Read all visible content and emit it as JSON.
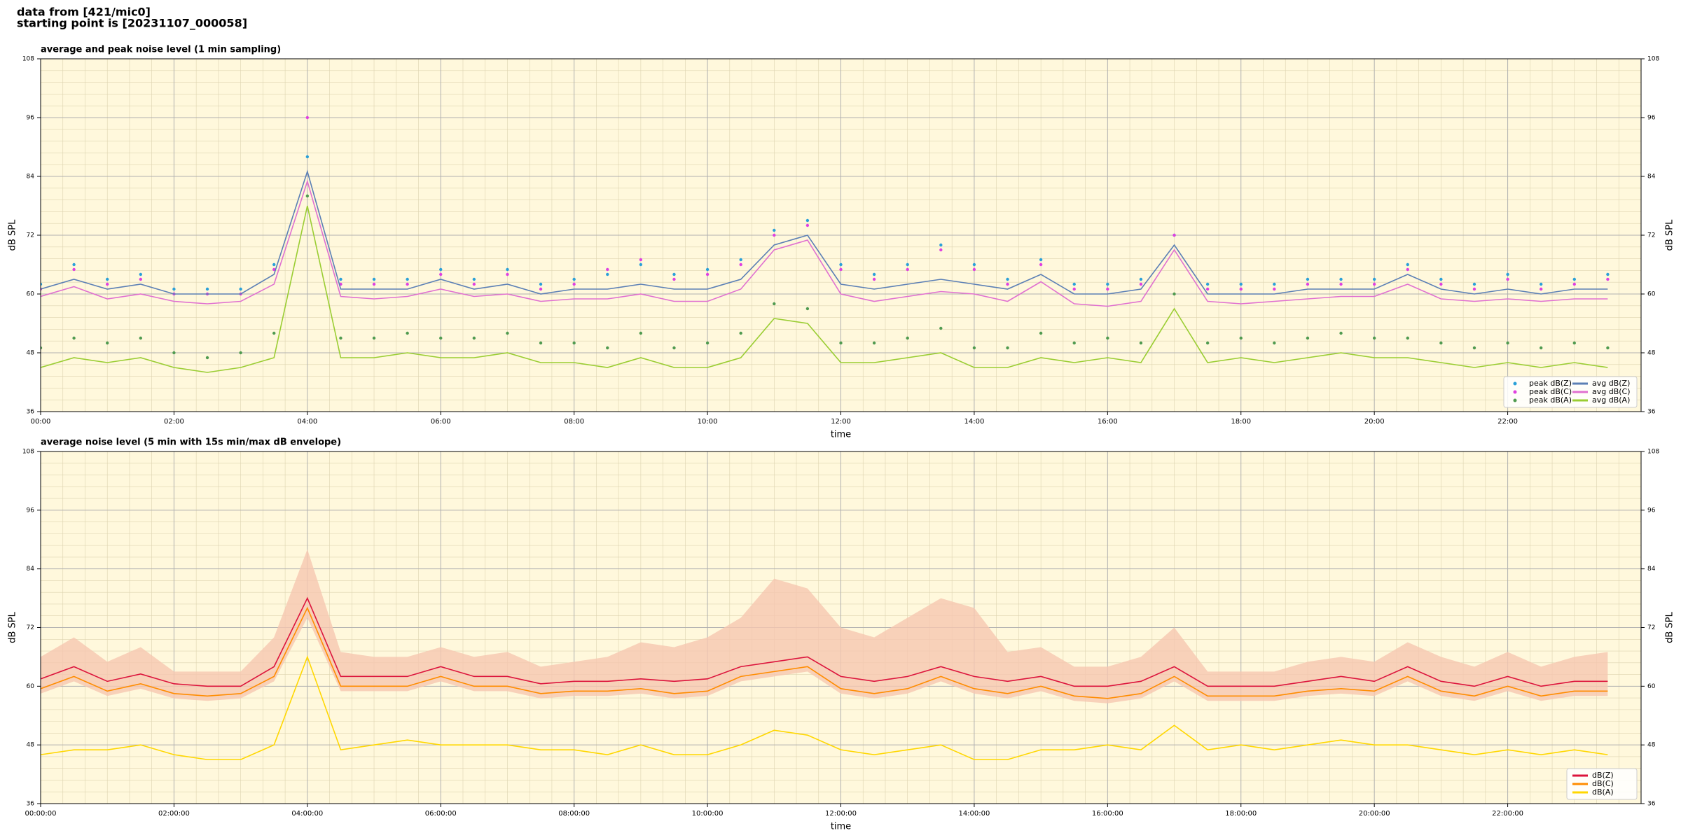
{
  "header": {
    "lines": [
      "data from [421/mic0]",
      "starting point is [20231107_000058]"
    ]
  },
  "chart_data": [
    {
      "type": "line",
      "title": "average and peak noise level (1 min sampling)",
      "xlabel": "time",
      "ylabel": "dB SPL",
      "y2label": "dB SPL",
      "background": "#fff8dc",
      "grid": true,
      "legend": "lower right",
      "legend_columns": 2,
      "xlim": [
        0,
        24
      ],
      "xticks": [
        {
          "value": 0,
          "label": "00:00"
        },
        {
          "value": 2,
          "label": "02:00"
        },
        {
          "value": 4,
          "label": "04:00"
        },
        {
          "value": 6,
          "label": "06:00"
        },
        {
          "value": 8,
          "label": "08:00"
        },
        {
          "value": 10,
          "label": "10:00"
        },
        {
          "value": 12,
          "label": "12:00"
        },
        {
          "value": 14,
          "label": "14:00"
        },
        {
          "value": 16,
          "label": "16:00"
        },
        {
          "value": 18,
          "label": "18:00"
        },
        {
          "value": 20,
          "label": "20:00"
        },
        {
          "value": 22,
          "label": "22:00"
        }
      ],
      "ylim": [
        36,
        108
      ],
      "yticks": [
        36,
        48,
        60,
        72,
        84,
        96,
        108
      ],
      "y2lim": [
        36,
        108
      ],
      "y2ticks": [
        36,
        48,
        60,
        72,
        84,
        96,
        108
      ],
      "x": [
        0,
        0.5,
        1,
        1.5,
        2,
        2.5,
        3,
        3.5,
        4,
        4.5,
        5,
        5.5,
        6,
        6.5,
        7,
        7.5,
        8,
        8.5,
        9,
        9.5,
        10,
        10.5,
        11,
        11.5,
        12,
        12.5,
        13,
        13.5,
        14,
        14.5,
        15,
        15.5,
        16,
        16.5,
        17,
        17.5,
        18,
        18.5,
        19,
        19.5,
        20,
        20.5,
        21,
        21.5,
        22,
        22.5,
        23,
        23.5
      ],
      "series": [
        {
          "name": "peak dB(Z)",
          "kind": "scatter",
          "color": "#2aa0d8",
          "values": [
            62,
            66,
            63,
            64,
            61,
            61,
            61,
            66,
            88,
            63,
            63,
            63,
            65,
            63,
            65,
            62,
            63,
            64,
            66,
            64,
            65,
            67,
            73,
            75,
            66,
            64,
            66,
            70,
            66,
            63,
            67,
            62,
            62,
            63,
            72,
            62,
            62,
            62,
            63,
            63,
            63,
            66,
            63,
            62,
            64,
            62,
            63,
            64
          ]
        },
        {
          "name": "peak dB(C)",
          "kind": "scatter",
          "color": "#e040e0",
          "values": [
            61,
            65,
            62,
            63,
            60,
            60,
            60,
            65,
            96,
            62,
            62,
            62,
            64,
            62,
            64,
            61,
            62,
            65,
            67,
            63,
            64,
            66,
            72,
            74,
            65,
            63,
            65,
            69,
            65,
            62,
            66,
            61,
            61,
            62,
            72,
            61,
            61,
            61,
            62,
            62,
            62,
            65,
            62,
            61,
            63,
            61,
            62,
            63
          ]
        },
        {
          "name": "peak dB(A)",
          "kind": "scatter",
          "color": "#4f9a4f",
          "values": [
            49,
            51,
            50,
            51,
            48,
            47,
            48,
            52,
            80,
            51,
            51,
            52,
            51,
            51,
            52,
            50,
            50,
            49,
            52,
            49,
            50,
            52,
            58,
            57,
            50,
            50,
            51,
            53,
            49,
            49,
            52,
            50,
            51,
            50,
            60,
            50,
            51,
            50,
            51,
            52,
            51,
            51,
            50,
            49,
            50,
            49,
            50,
            49
          ]
        },
        {
          "name": "avg dB(Z)",
          "kind": "line",
          "color": "#5b7fb5",
          "values": [
            61,
            63,
            61,
            62,
            60,
            60,
            60,
            64,
            85,
            61,
            61,
            61,
            63,
            61,
            62,
            60,
            61,
            61,
            62,
            61,
            61,
            63,
            70,
            72,
            62,
            61,
            62,
            63,
            62,
            61,
            64,
            60,
            60,
            61,
            70,
            60,
            60,
            60,
            61,
            61,
            61,
            64,
            61,
            60,
            61,
            60,
            61,
            61
          ]
        },
        {
          "name": "avg dB(C)",
          "kind": "line",
          "color": "#e070d0",
          "values": [
            59.5,
            61.5,
            59,
            60,
            58.5,
            58,
            58.5,
            62,
            83,
            59.5,
            59,
            59.5,
            61,
            59.5,
            60,
            58.5,
            59,
            59,
            60,
            58.5,
            58.5,
            61,
            69,
            71,
            60,
            58.5,
            59.5,
            60.5,
            60,
            58.5,
            62.5,
            58,
            57.5,
            58.5,
            69,
            58.5,
            58,
            58.5,
            59,
            59.5,
            59.5,
            62,
            59,
            58.5,
            59,
            58.5,
            59,
            59
          ]
        },
        {
          "name": "avg dB(A)",
          "kind": "line",
          "color": "#9acd32",
          "values": [
            45,
            47,
            46,
            47,
            45,
            44,
            45,
            47,
            78,
            47,
            47,
            48,
            47,
            47,
            48,
            46,
            46,
            45,
            47,
            45,
            45,
            47,
            55,
            54,
            46,
            46,
            47,
            48,
            45,
            45,
            47,
            46,
            47,
            46,
            57,
            46,
            47,
            46,
            47,
            48,
            47,
            47,
            46,
            45,
            46,
            45,
            46,
            45
          ]
        }
      ]
    },
    {
      "type": "line",
      "title": "average noise level (5 min with 15s min/max dB envelope)",
      "xlabel": "time",
      "ylabel": "dB SPL",
      "y2label": "dB SPL",
      "background": "#fff8dc",
      "grid": true,
      "legend": "lower right",
      "legend_columns": 1,
      "xlim": [
        0,
        24
      ],
      "xticks": [
        {
          "value": 0,
          "label": "00:00:00"
        },
        {
          "value": 2,
          "label": "02:00:00"
        },
        {
          "value": 4,
          "label": "04:00:00"
        },
        {
          "value": 6,
          "label": "06:00:00"
        },
        {
          "value": 8,
          "label": "08:00:00"
        },
        {
          "value": 10,
          "label": "10:00:00"
        },
        {
          "value": 12,
          "label": "12:00:00"
        },
        {
          "value": 14,
          "label": "14:00:00"
        },
        {
          "value": 16,
          "label": "16:00:00"
        },
        {
          "value": 18,
          "label": "18:00:00"
        },
        {
          "value": 20,
          "label": "20:00:00"
        },
        {
          "value": 22,
          "label": "22:00:00"
        }
      ],
      "ylim": [
        36,
        108
      ],
      "yticks": [
        36,
        48,
        60,
        72,
        84,
        96,
        108
      ],
      "y2lim": [
        36,
        108
      ],
      "y2ticks": [
        36,
        48,
        60,
        72,
        84,
        96,
        108
      ],
      "x": [
        0,
        0.5,
        1,
        1.5,
        2,
        2.5,
        3,
        3.5,
        4,
        4.5,
        5,
        5.5,
        6,
        6.5,
        7,
        7.5,
        8,
        8.5,
        9,
        9.5,
        10,
        10.5,
        11,
        11.5,
        12,
        12.5,
        13,
        13.5,
        14,
        14.5,
        15,
        15.5,
        16,
        16.5,
        17,
        17.5,
        18,
        18.5,
        19,
        19.5,
        20,
        20.5,
        21,
        21.5,
        22,
        22.5,
        23,
        23.5
      ],
      "band": {
        "color": "#f6c7b0",
        "lower": [
          58.5,
          61,
          58,
          59.5,
          57.5,
          57,
          57.5,
          61,
          74,
          59,
          59,
          59,
          61,
          59,
          59,
          57.5,
          58,
          58,
          58.5,
          57.5,
          58,
          61,
          62,
          63,
          58.5,
          57.5,
          58.5,
          61,
          58.5,
          57.5,
          59,
          57,
          56.5,
          57.5,
          61,
          57,
          57,
          57,
          58,
          58.5,
          58,
          61,
          58,
          57,
          59,
          57,
          58,
          58
        ],
        "upper": [
          66,
          70,
          65,
          68,
          63,
          63,
          63,
          70,
          88,
          67,
          66,
          66,
          68,
          66,
          67,
          64,
          65,
          66,
          69,
          68,
          70,
          74,
          82,
          80,
          72,
          70,
          74,
          78,
          76,
          67,
          68,
          64,
          64,
          66,
          72,
          63,
          63,
          63,
          65,
          66,
          65,
          69,
          66,
          64,
          67,
          64,
          66,
          67
        ]
      },
      "series": [
        {
          "name": "dB(Z)",
          "kind": "line",
          "color": "#dc143c",
          "values": [
            61.5,
            64,
            61,
            62.5,
            60.5,
            60,
            60,
            64,
            78,
            62,
            62,
            62,
            64,
            62,
            62,
            60.5,
            61,
            61,
            61.5,
            61,
            61.5,
            64,
            65,
            66,
            62,
            61,
            62,
            64,
            62,
            61,
            62,
            60,
            60,
            61,
            64,
            60,
            60,
            60,
            61,
            62,
            61,
            64,
            61,
            60,
            62,
            60,
            61,
            61
          ]
        },
        {
          "name": "dB(C)",
          "kind": "line",
          "color": "#ff8c00",
          "values": [
            59.5,
            62,
            59,
            60.5,
            58.5,
            58,
            58.5,
            62,
            76,
            60,
            60,
            60,
            62,
            60,
            60,
            58.5,
            59,
            59,
            59.5,
            58.5,
            59,
            62,
            63,
            64,
            59.5,
            58.5,
            59.5,
            62,
            59.5,
            58.5,
            60,
            58,
            57.5,
            58.5,
            62,
            58,
            58,
            58,
            59,
            59.5,
            59,
            62,
            59,
            58,
            60,
            58,
            59,
            59
          ]
        },
        {
          "name": "dB(A)",
          "kind": "line",
          "color": "#ffd700",
          "values": [
            46,
            47,
            47,
            48,
            46,
            45,
            45,
            48,
            66,
            47,
            48,
            49,
            48,
            48,
            48,
            47,
            47,
            46,
            48,
            46,
            46,
            48,
            51,
            50,
            47,
            46,
            47,
            48,
            45,
            45,
            47,
            47,
            48,
            47,
            52,
            47,
            48,
            47,
            48,
            49,
            48,
            48,
            47,
            46,
            47,
            46,
            47,
            46
          ]
        }
      ]
    }
  ]
}
